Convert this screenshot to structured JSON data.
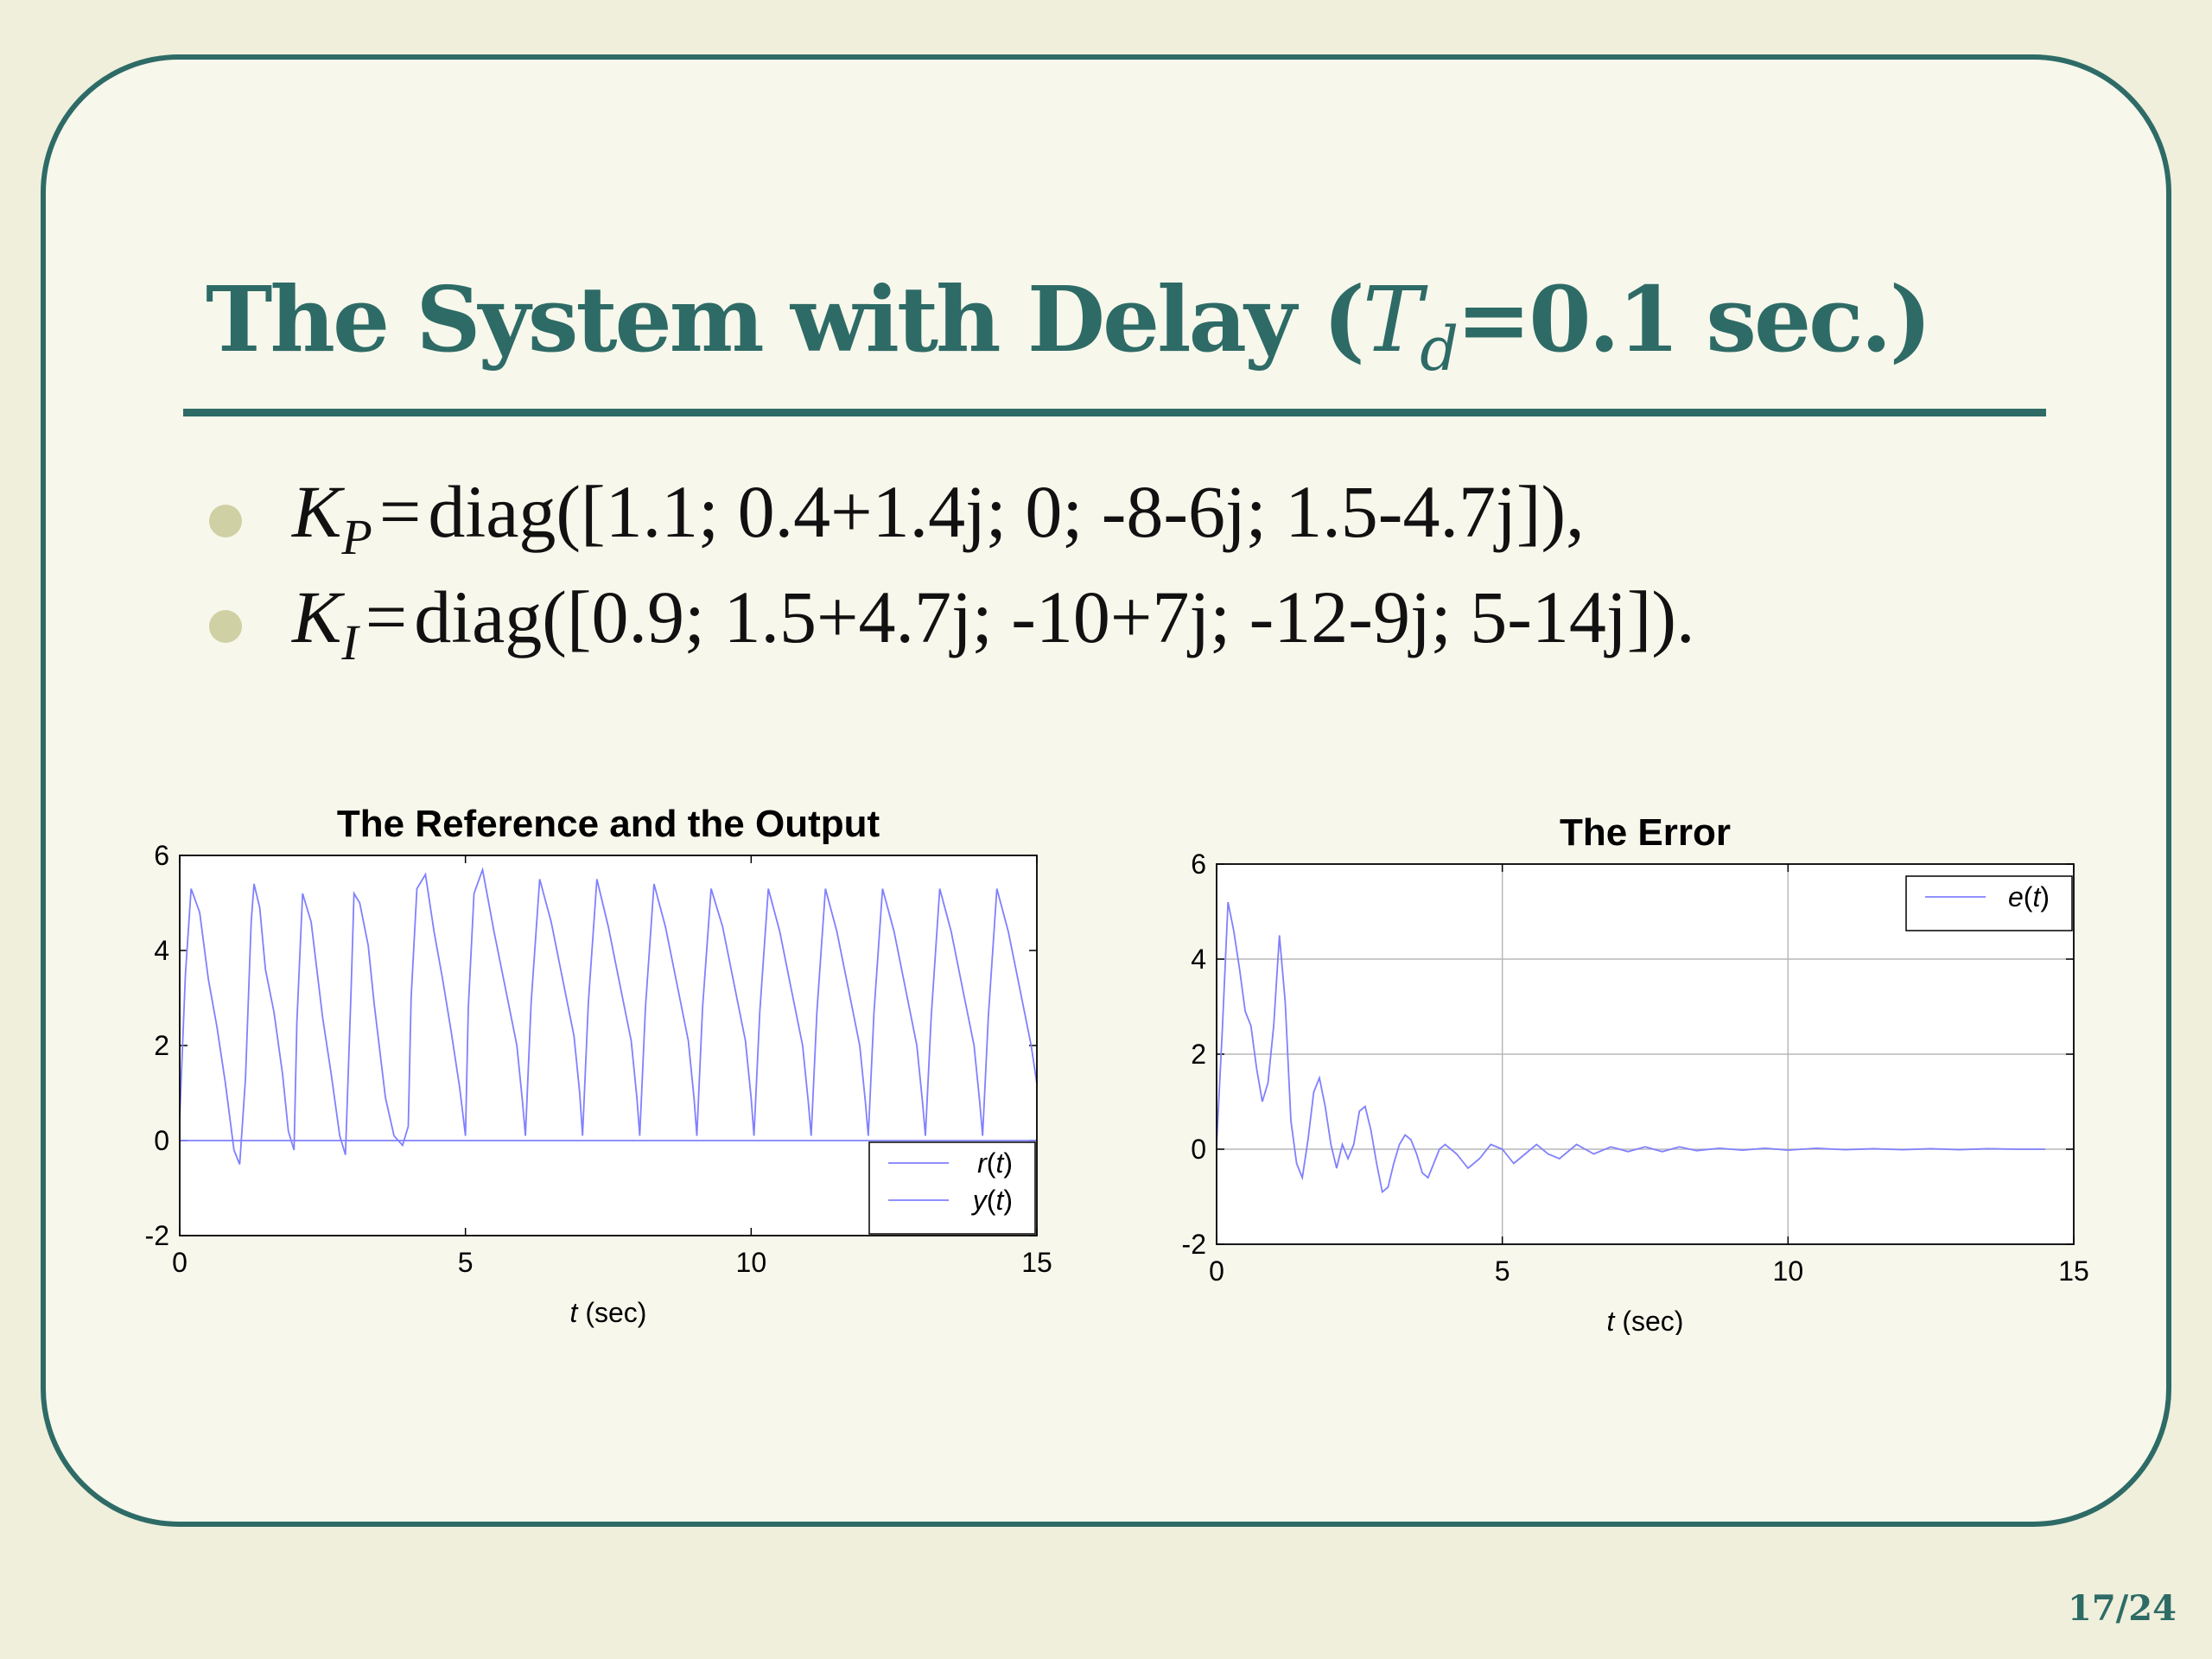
{
  "slide": {
    "title_prefix": "The System with Delay (",
    "title_symbol": "T",
    "title_subscript": "d",
    "title_suffix": "=0.1 sec.)",
    "bullets": [
      {
        "symbol": "K",
        "subscript": "P",
        "equals": "=",
        "text": "diag([1.1; 0.4+1.4j; 0; -8-6j; 1.5-4.7j]),"
      },
      {
        "symbol": "K",
        "subscript": "I",
        "equals": "=",
        "text": "diag([0.9; 1.5+4.7j; -10+7j; -12-9j; 5-14j])."
      }
    ],
    "page_number": "17/24",
    "accent_color": "#2e6b66",
    "background_color": "#f7f7ec",
    "bullet_color": "#cfd0a3"
  },
  "chart_data": [
    {
      "type": "line",
      "title": "The Reference and the Output",
      "xlabel_italic": "t",
      "xlabel_rest": " (sec)",
      "xlim": [
        0,
        15
      ],
      "ylim": [
        -2,
        6
      ],
      "xticks": [
        0,
        5,
        10,
        15
      ],
      "yticks": [
        -2,
        0,
        2,
        4,
        6
      ],
      "grid": false,
      "legend_position": "bottom-right",
      "line_color": "#8080ff",
      "series": [
        {
          "legend_italic": "r",
          "legend_prefix": "",
          "legend_arg": "t",
          "x": [
            0,
            0.25,
            0.35,
            0.5,
            0.6,
            0.75,
            0.9,
            1.0,
            1.25,
            1.35,
            1.5,
            1.6,
            1.75,
            1.9,
            2.0,
            2.25,
            2.35,
            2.5,
            2.6,
            2.75,
            2.9,
            3.0,
            3.25,
            3.35,
            3.5,
            3.6,
            3.75,
            3.9,
            4.0,
            4.25,
            4.35,
            4.5,
            4.6,
            4.75,
            4.9,
            5.0,
            5.25,
            5.35,
            5.5,
            5.6,
            5.75,
            5.9,
            6.0,
            6.25,
            6.35,
            6.5,
            6.6,
            6.75,
            6.9,
            7.0,
            7.25,
            7.35,
            7.5,
            7.6,
            7.75,
            7.9,
            8.0,
            8.25,
            8.35,
            8.5,
            8.6,
            8.75,
            8.9,
            9.0,
            9.25,
            9.35,
            9.5,
            9.6,
            9.75,
            9.9,
            10.0,
            10.25,
            10.35,
            10.5,
            10.6,
            10.75,
            10.9,
            11.0,
            11.25,
            11.35,
            11.5,
            11.6,
            11.75,
            11.9,
            12.0,
            12.25,
            12.35,
            12.5,
            12.6,
            12.75,
            12.9,
            13.0,
            13.25,
            13.35,
            13.5,
            13.6,
            13.75,
            13.9,
            14.0,
            14.25,
            14.35,
            14.5,
            14.6,
            14.75,
            14.9,
            15.0
          ],
          "y": [
            0,
            0,
            0,
            0,
            0,
            0,
            0,
            0,
            0,
            0,
            0,
            0,
            0,
            0,
            0,
            0,
            0,
            0,
            0,
            0,
            0,
            0,
            0,
            0,
            0,
            0,
            0,
            0,
            0,
            0,
            0,
            0,
            0,
            0,
            0,
            0,
            0,
            0,
            0,
            0,
            0,
            0,
            0,
            0,
            0,
            0,
            0,
            0,
            0,
            0,
            0,
            0,
            0,
            0,
            0,
            0,
            0,
            0,
            0,
            0,
            0,
            0,
            0,
            0,
            0,
            0,
            0,
            0,
            0,
            0,
            0,
            0,
            0,
            0,
            0,
            0,
            0,
            0,
            0,
            0,
            0,
            0,
            0,
            0,
            0,
            0,
            0,
            0,
            0,
            0,
            0,
            0,
            0,
            0,
            0,
            0,
            0,
            0,
            0,
            0,
            0,
            0,
            0,
            0,
            0,
            0
          ]
        },
        {
          "legend_italic": "y",
          "legend_prefix": "",
          "legend_arg": "t",
          "x": [
            0,
            0.1,
            0.2,
            0.35,
            0.5,
            0.65,
            0.8,
            0.95,
            1.05,
            1.15,
            1.25,
            1.3,
            1.4,
            1.5,
            1.65,
            1.8,
            1.9,
            2.0,
            2.05,
            2.15,
            2.3,
            2.4,
            2.5,
            2.65,
            2.8,
            2.9,
            3.0,
            3.05,
            3.15,
            3.3,
            3.4,
            3.5,
            3.6,
            3.75,
            3.9,
            4.0,
            4.05,
            4.15,
            4.3,
            4.45,
            4.6,
            4.75,
            4.9,
            5.0,
            5.05,
            5.15,
            5.3,
            5.5,
            5.7,
            5.9,
            6.0,
            6.05,
            6.15,
            6.3,
            6.5,
            6.7,
            6.9,
            7.0,
            7.05,
            7.15,
            7.3,
            7.5,
            7.7,
            7.9,
            8.0,
            8.05,
            8.15,
            8.3,
            8.5,
            8.7,
            8.9,
            9.0,
            9.05,
            9.15,
            9.3,
            9.5,
            9.7,
            9.9,
            10.0,
            10.05,
            10.15,
            10.3,
            10.5,
            10.7,
            10.9,
            11.0,
            11.05,
            11.15,
            11.3,
            11.5,
            11.7,
            11.9,
            12.0,
            12.05,
            12.15,
            12.3,
            12.5,
            12.7,
            12.9,
            13.0,
            13.05,
            13.15,
            13.3,
            13.5,
            13.7,
            13.9,
            14.0,
            14.05,
            14.15,
            14.3,
            14.5,
            14.7,
            14.9,
            15.0
          ],
          "y": [
            0.5,
            3.5,
            5.3,
            4.8,
            3.4,
            2.4,
            1.2,
            -0.2,
            -0.5,
            1.3,
            4.6,
            5.4,
            4.9,
            3.6,
            2.7,
            1.4,
            0.2,
            -0.2,
            2.5,
            5.2,
            4.6,
            3.6,
            2.6,
            1.4,
            0.1,
            -0.3,
            3.2,
            5.2,
            5.0,
            4.1,
            2.9,
            1.9,
            0.9,
            0.1,
            -0.1,
            0.3,
            3.0,
            5.3,
            5.6,
            4.4,
            3.4,
            2.3,
            1.1,
            0.1,
            2.8,
            5.2,
            5.7,
            4.4,
            3.2,
            2.0,
            0.8,
            0.1,
            2.9,
            5.5,
            4.6,
            3.4,
            2.2,
            1.0,
            0.1,
            2.9,
            5.5,
            4.5,
            3.3,
            2.1,
            0.9,
            0.1,
            2.8,
            5.4,
            4.5,
            3.3,
            2.1,
            0.9,
            0.1,
            2.8,
            5.3,
            4.5,
            3.3,
            2.1,
            0.9,
            0.1,
            2.7,
            5.3,
            4.4,
            3.2,
            2.0,
            0.8,
            0.1,
            2.7,
            5.3,
            4.4,
            3.2,
            2.0,
            0.8,
            0.1,
            2.7,
            5.3,
            4.4,
            3.2,
            2.0,
            0.8,
            0.1,
            2.6,
            5.3,
            4.4,
            3.2,
            2.0,
            0.8,
            0.1,
            2.6,
            5.3,
            4.4,
            3.2,
            2.0,
            1.2
          ]
        }
      ]
    },
    {
      "type": "line",
      "title": "The Error",
      "xlabel_italic": "t",
      "xlabel_rest": " (sec)",
      "xlim": [
        0,
        15
      ],
      "ylim": [
        -2,
        6
      ],
      "xticks": [
        0,
        5,
        10,
        15
      ],
      "yticks": [
        -2,
        0,
        2,
        4,
        6
      ],
      "grid": true,
      "legend_position": "top-right",
      "line_color": "#8080ff",
      "series": [
        {
          "legend_italic": "e",
          "legend_prefix": "",
          "legend_arg": "t",
          "x": [
            0,
            0.1,
            0.2,
            0.3,
            0.4,
            0.5,
            0.6,
            0.7,
            0.8,
            0.9,
            1.0,
            1.1,
            1.2,
            1.3,
            1.4,
            1.5,
            1.6,
            1.7,
            1.8,
            1.9,
            2.0,
            2.1,
            2.2,
            2.3,
            2.4,
            2.5,
            2.6,
            2.7,
            2.8,
            2.9,
            3.0,
            3.1,
            3.2,
            3.3,
            3.4,
            3.5,
            3.6,
            3.7,
            3.8,
            3.9,
            4.0,
            4.2,
            4.4,
            4.6,
            4.8,
            5.0,
            5.2,
            5.4,
            5.6,
            5.8,
            6.0,
            6.3,
            6.6,
            6.9,
            7.2,
            7.5,
            7.8,
            8.1,
            8.4,
            8.8,
            9.2,
            9.6,
            10.0,
            10.5,
            11.0,
            11.5,
            12.0,
            12.5,
            13.0,
            13.5,
            14.0,
            14.5
          ],
          "y": [
            0.1,
            2.5,
            5.2,
            4.6,
            3.8,
            2.9,
            2.6,
            1.7,
            1.0,
            1.4,
            2.6,
            4.5,
            3.1,
            0.6,
            -0.3,
            -0.6,
            0.2,
            1.2,
            1.5,
            0.9,
            0.1,
            -0.4,
            0.1,
            -0.2,
            0.1,
            0.8,
            0.9,
            0.4,
            -0.3,
            -0.9,
            -0.8,
            -0.3,
            0.1,
            0.3,
            0.2,
            -0.1,
            -0.5,
            -0.6,
            -0.3,
            0.0,
            0.1,
            -0.1,
            -0.4,
            -0.2,
            0.1,
            0.0,
            -0.3,
            -0.1,
            0.1,
            -0.1,
            -0.2,
            0.1,
            -0.1,
            0.05,
            -0.05,
            0.05,
            -0.05,
            0.05,
            -0.03,
            0.02,
            -0.02,
            0.02,
            -0.02,
            0.02,
            -0.01,
            0.01,
            -0.01,
            0.01,
            -0.01,
            0.01,
            0.0,
            0.0
          ]
        }
      ]
    }
  ]
}
